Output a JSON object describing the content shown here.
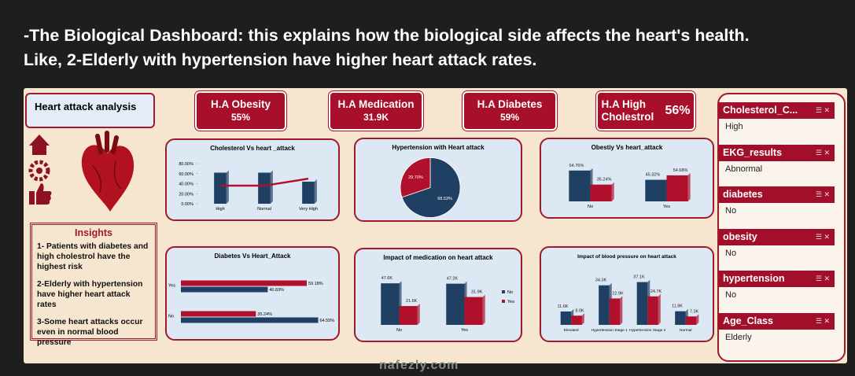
{
  "header": {
    "lines": [
      "-The Biological Dashboard: this explains how the biological side affects the heart's health.",
      "Like, 2-Elderly with hypertension have higher heart attack rates."
    ]
  },
  "dashboard": {
    "title": "Heart attack analysis",
    "kpis": [
      {
        "label": "H.A Obesity",
        "value": "55%"
      },
      {
        "label": "H.A Medication",
        "value": "31.9K"
      },
      {
        "label": "H.A Diabetes",
        "value": "59%"
      },
      {
        "label": "H.A High Cholestrol",
        "value": "56%"
      }
    ],
    "insights": {
      "title": "Insights",
      "items": [
        "1- Patients with diabetes and high cholestrol have the highest risk",
        "2-Elderly with hypertension have higher heart attack rates",
        "3-Some heart attacks occur even in normal blood pressure"
      ]
    },
    "slicers": [
      {
        "title": "Cholesterol_C...",
        "selected": "High"
      },
      {
        "title": "EKG_results",
        "selected": "Abnormal"
      },
      {
        "title": "diabetes",
        "selected": "No"
      },
      {
        "title": "obesity",
        "selected": "No"
      },
      {
        "title": "hypertension",
        "selected": "No"
      },
      {
        "title": "Age_Class",
        "selected": "Elderly"
      }
    ]
  },
  "chart_data": [
    {
      "type": "bar",
      "title": "Cholesterol Vs heart _attack",
      "categories": [
        "High",
        "Normal",
        "Very High"
      ],
      "series": [
        {
          "color": "#1f3f63",
          "values": [
            62,
            62,
            44
          ]
        },
        {
          "type": "line",
          "color": "#b0102c",
          "values": [
            36,
            36,
            50
          ]
        }
      ],
      "ylim": [
        0,
        80
      ],
      "yticks": [
        {
          "value": 0,
          "label": "0.00%"
        },
        {
          "value": 20,
          "label": "20.00%"
        },
        {
          "value": 40,
          "label": "40.00%"
        },
        {
          "value": 60,
          "label": "60.00%"
        },
        {
          "value": 80,
          "label": "80.00%"
        }
      ]
    },
    {
      "type": "pie",
      "title": "Hypertension with Heart attack",
      "values": [
        68.53,
        29.7
      ],
      "value_labels": [
        "68.53%",
        "29.70%"
      ],
      "colors": [
        "#1f3f63",
        "#b0102c"
      ]
    },
    {
      "type": "bar",
      "title": "Obestiy Vs heart_attack",
      "categories": [
        "No",
        "Yes"
      ],
      "series": [
        {
          "color": "#1f3f63",
          "values": [
            64.76,
            45.32
          ],
          "value_labels": [
            "64.76%",
            "45.32%"
          ]
        },
        {
          "color": "#b0102c",
          "values": [
            35.24,
            54.68
          ],
          "value_labels": [
            "35.24%",
            "54.68%"
          ]
        }
      ]
    },
    {
      "type": "hbar",
      "title": "Diabetes Vs Heart_Attack",
      "categories": [
        "Yes",
        "No"
      ],
      "series": [
        {
          "color": "#b0102c",
          "values": [
            59.18,
            35.24
          ],
          "value_labels": [
            "59.18%",
            "35.24%"
          ]
        },
        {
          "color": "#1f3f63",
          "values": [
            40.83,
            64.55
          ],
          "value_labels": [
            "40.83%",
            "64.55%"
          ]
        }
      ]
    },
    {
      "type": "bar",
      "title": "Impact of medication on heart attack",
      "categories": [
        "No",
        "Yes"
      ],
      "series": [
        {
          "name": "No",
          "color": "#1f3f63",
          "values": [
            47600,
            47200
          ],
          "value_labels": [
            "47.6K",
            "47.2K"
          ]
        },
        {
          "name": "Yes",
          "color": "#b0102c",
          "values": [
            21600,
            31900
          ],
          "value_labels": [
            "21.6K",
            "31.9K"
          ]
        }
      ]
    },
    {
      "type": "bar",
      "title": "Impact of blood pressure on heart attack",
      "categories": [
        "Elevated",
        "Hypertension Stage 1",
        "Hypertension Stage 2",
        "Normal"
      ],
      "series": [
        {
          "color": "#1f3f63",
          "values": [
            11600,
            34300,
            37100,
            11800
          ],
          "value_labels": [
            "11.6K",
            "34.3K",
            "37.1K",
            "11.8K"
          ]
        },
        {
          "color": "#b0102c",
          "values": [
            8000,
            22900,
            24700,
            7300
          ],
          "value_labels": [
            "8.0K",
            "22.9K",
            "24.7K",
            "7.3K"
          ]
        }
      ]
    }
  ],
  "watermark": "nafezly.com"
}
